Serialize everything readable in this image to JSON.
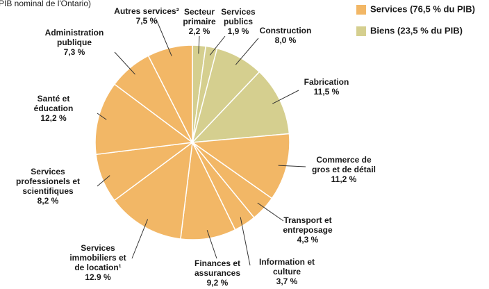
{
  "chart_data": {
    "type": "pie",
    "title": "PIB nominal de l'Ontario)",
    "categories": [
      [
        "Secteur",
        "primaire"
      ],
      [
        "Services",
        "publics"
      ],
      [
        "Construction"
      ],
      [
        "Fabrication"
      ],
      [
        "Commerce de",
        "gros et de détail"
      ],
      [
        "Transport et",
        "entreposage"
      ],
      [
        "Information et",
        "culture"
      ],
      [
        "Finances et",
        "assurances"
      ],
      [
        "Services",
        "immobiliers et",
        "de location¹"
      ],
      [
        "Services",
        "professionels et",
        "scientifiques"
      ],
      [
        "Santé et",
        "éducation"
      ],
      [
        "Administration",
        "publique"
      ],
      [
        "Autres services²"
      ]
    ],
    "values": [
      2.2,
      1.9,
      8.0,
      11.5,
      11.2,
      4.3,
      3.7,
      9.2,
      12.9,
      8.2,
      12.2,
      7.3,
      7.5
    ],
    "value_labels": [
      "2,2 %",
      "1,9 %",
      "8,0 %",
      "11,5 %",
      "11,2 %",
      "4,3 %",
      "3,7 %",
      "9,2 %",
      "12.9  %",
      "8,2 %",
      "12,2 %",
      "7,3 %",
      "7,5 %"
    ],
    "colors": [
      "#d5cf8f",
      "#d5cf8f",
      "#d5cf8f",
      "#d5cf8f",
      "#f2b766",
      "#f2b766",
      "#f2b766",
      "#f2b766",
      "#f2b766",
      "#f2b766",
      "#f2b766",
      "#f2b766",
      "#f2b766"
    ],
    "legend": [
      {
        "name": "Services (76,5 % du PIB)",
        "color": "#f2b766"
      },
      {
        "name": "Biens (23,5 % du PIB)",
        "color": "#d5cf8f"
      }
    ]
  }
}
